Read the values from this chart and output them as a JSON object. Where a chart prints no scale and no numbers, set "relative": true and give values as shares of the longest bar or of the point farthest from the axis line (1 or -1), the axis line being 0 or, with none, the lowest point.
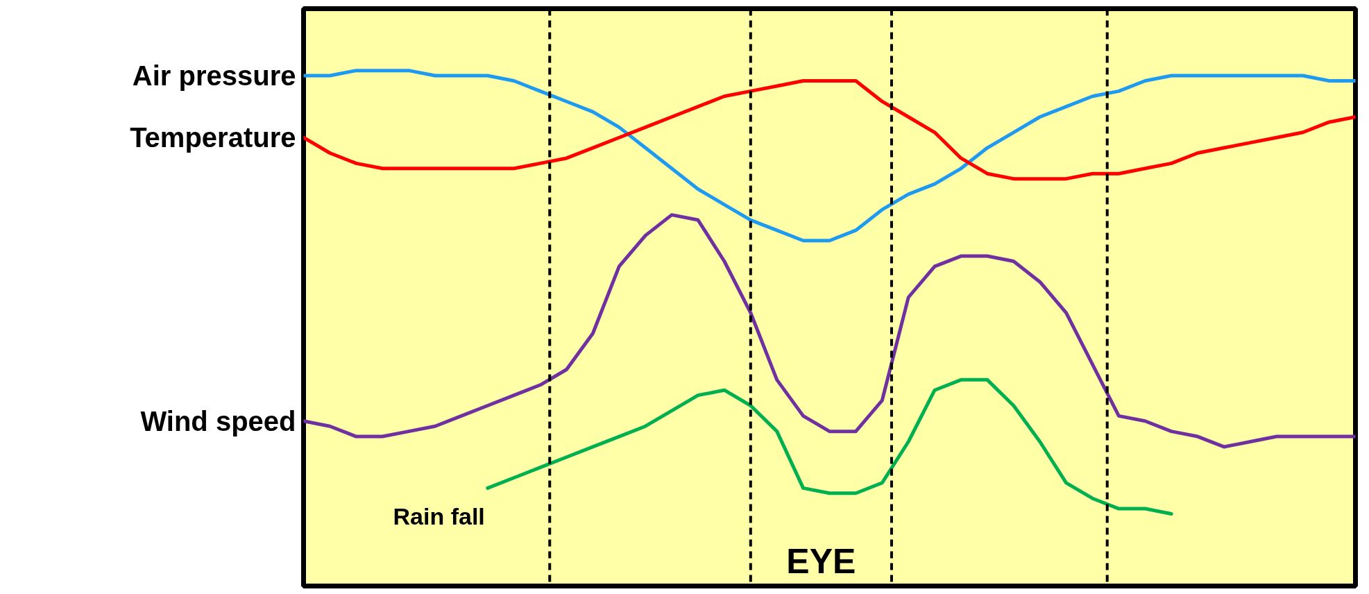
{
  "chart_data": {
    "type": "line",
    "relative": true,
    "tick_labels": false,
    "grid": false,
    "legend": false,
    "line_style": "solid",
    "marker": "none",
    "categories": [
      null,
      null,
      null,
      null,
      null,
      null,
      null,
      null,
      null,
      null,
      null,
      null,
      null,
      null,
      null,
      null,
      null,
      null,
      null,
      null,
      null,
      null,
      null,
      null,
      null,
      null,
      null,
      null,
      null,
      null,
      null,
      null,
      null,
      null,
      null,
      null,
      null,
      null,
      null,
      null,
      null
    ],
    "series": [
      {
        "name": "Air pressure",
        "color": "#1e9bf0",
        "values": [
          0.99,
          0.99,
          1.0,
          1.0,
          1.0,
          0.99,
          0.99,
          0.99,
          0.98,
          0.96,
          0.94,
          0.92,
          0.89,
          0.85,
          0.81,
          0.77,
          0.74,
          0.71,
          0.69,
          0.67,
          0.67,
          0.69,
          0.73,
          0.76,
          0.78,
          0.81,
          0.85,
          0.88,
          0.91,
          0.93,
          0.95,
          0.96,
          0.98,
          0.99,
          0.99,
          0.99,
          0.99,
          0.99,
          0.99,
          0.98,
          0.98
        ]
      },
      {
        "name": "Temperature",
        "color": "#ff0000",
        "values": [
          0.87,
          0.84,
          0.82,
          0.81,
          0.81,
          0.81,
          0.81,
          0.81,
          0.81,
          0.82,
          0.83,
          0.85,
          0.87,
          0.89,
          0.91,
          0.93,
          0.95,
          0.96,
          0.97,
          0.98,
          0.98,
          0.98,
          0.94,
          0.91,
          0.88,
          0.83,
          0.8,
          0.79,
          0.79,
          0.79,
          0.8,
          0.8,
          0.81,
          0.82,
          0.84,
          0.85,
          0.86,
          0.87,
          0.88,
          0.9,
          0.91
        ]
      },
      {
        "name": "Wind speed",
        "color": "#7030a0",
        "values": [
          0.32,
          0.31,
          0.29,
          0.29,
          0.3,
          0.31,
          0.33,
          0.35,
          0.37,
          0.39,
          0.42,
          0.49,
          0.62,
          0.68,
          0.72,
          0.71,
          0.63,
          0.53,
          0.4,
          0.33,
          0.3,
          0.3,
          0.36,
          0.56,
          0.62,
          0.64,
          0.64,
          0.63,
          0.59,
          0.53,
          0.43,
          0.33,
          0.32,
          0.3,
          0.29,
          0.27,
          0.28,
          0.29,
          0.29,
          0.29,
          0.29
        ]
      },
      {
        "name": "Rain fall",
        "color": "#00b050",
        "values": [
          null,
          null,
          null,
          null,
          null,
          null,
          null,
          0.19,
          0.21,
          0.23,
          0.25,
          0.27,
          0.29,
          0.31,
          0.34,
          0.37,
          0.38,
          0.35,
          0.3,
          0.19,
          0.18,
          0.18,
          0.2,
          0.28,
          0.38,
          0.4,
          0.4,
          0.35,
          0.28,
          0.2,
          0.17,
          0.15,
          0.15,
          0.14,
          null,
          null,
          null,
          null,
          null,
          null,
          null
        ]
      }
    ],
    "annotations": [
      "EYE"
    ]
  }
}
